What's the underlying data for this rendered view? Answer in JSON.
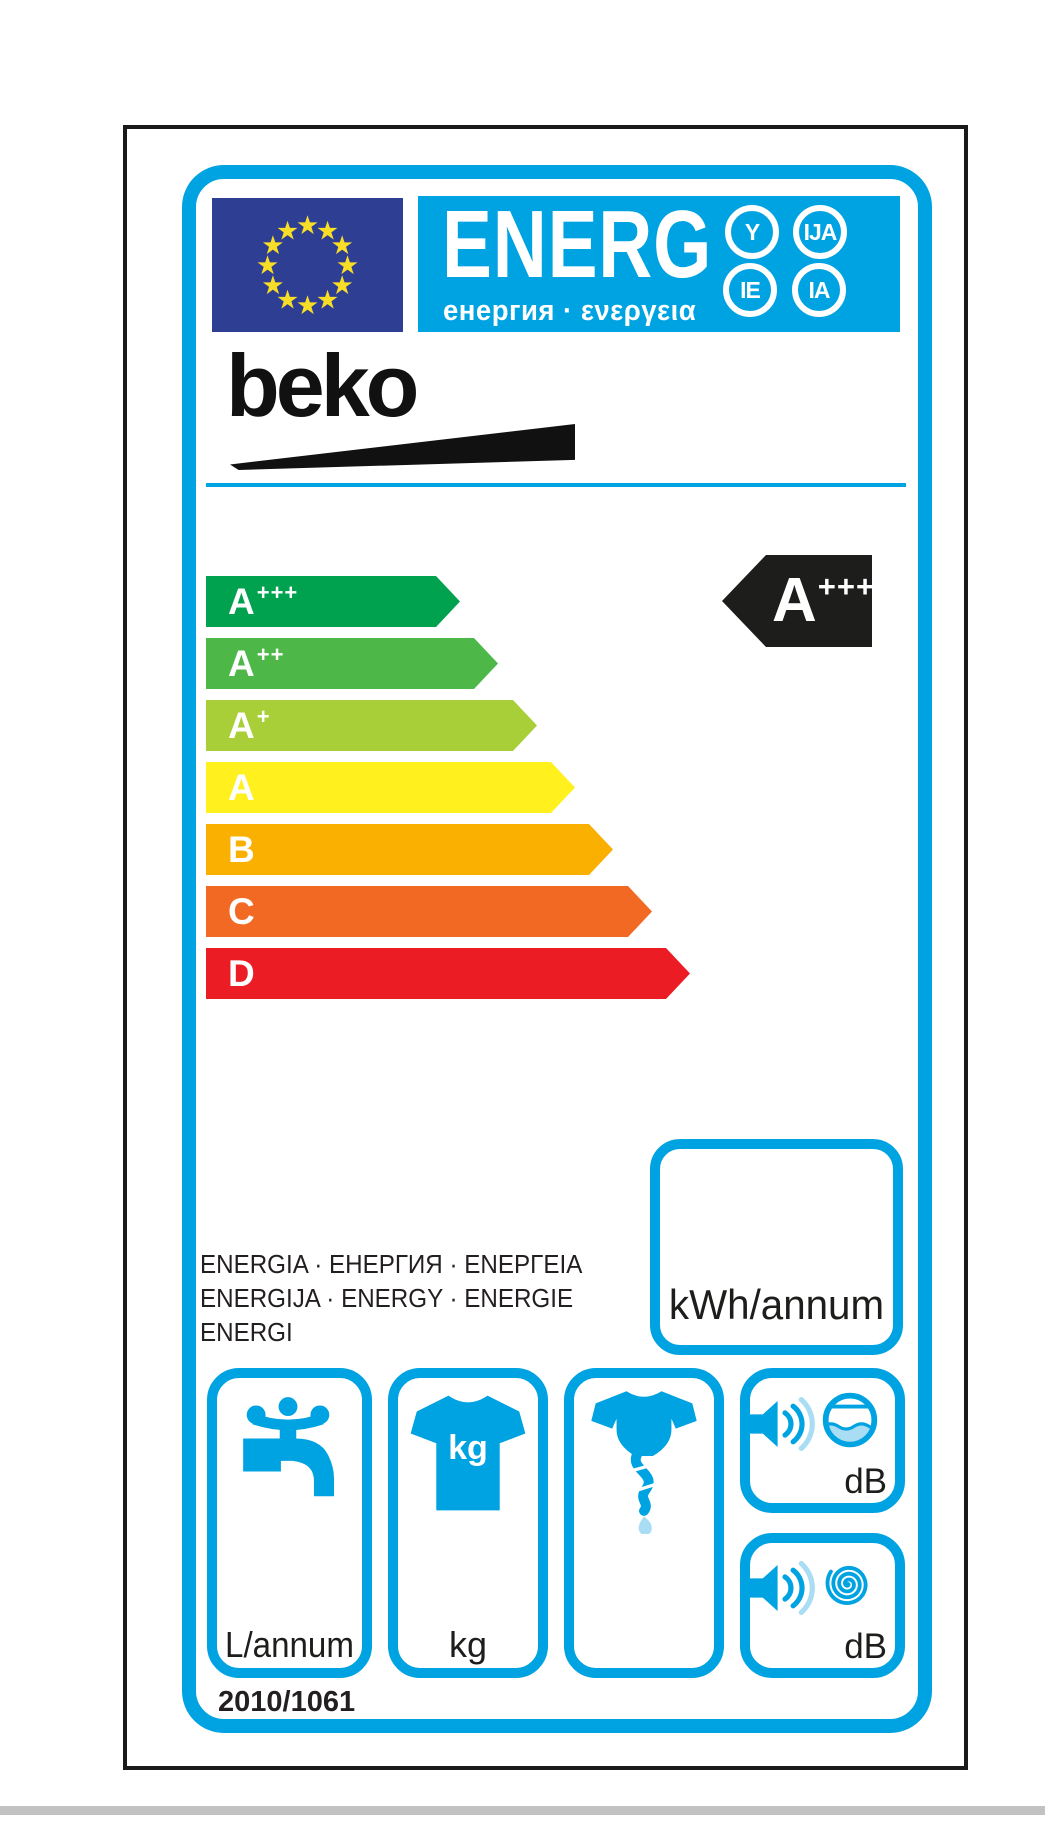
{
  "label": {
    "header": {
      "word": "ENERG",
      "subtitle": "енергия · ενεργεια",
      "badges": [
        "Y",
        "IJA",
        "IE",
        "IA"
      ]
    },
    "brand": "beko",
    "rating": {
      "selected": {
        "letter": "A",
        "sup": "+++"
      },
      "classes": [
        {
          "letter": "A",
          "sup": "+++",
          "color": "#00a24f"
        },
        {
          "letter": "A",
          "sup": "++",
          "color": "#4db848"
        },
        {
          "letter": "A",
          "sup": "+",
          "color": "#a8ce38"
        },
        {
          "letter": "A",
          "sup": "",
          "color": "#fff01e"
        },
        {
          "letter": "B",
          "sup": "",
          "color": "#f9b000"
        },
        {
          "letter": "C",
          "sup": "",
          "color": "#f26924"
        },
        {
          "letter": "D",
          "sup": "",
          "color": "#ec1c24"
        }
      ]
    },
    "energy_box": {
      "unit": "kWh/annum",
      "value": ""
    },
    "energia_lines": [
      "ENERGIA · ЕНЕРГИЯ · ENEPΓEIA",
      "ENERGIJA · ENERGY · ENERGIE",
      "ENERGI"
    ],
    "consumption_boxes": {
      "water": {
        "unit": "L/annum",
        "value": "",
        "icon": "tap-icon"
      },
      "capacity": {
        "unit": "kg",
        "icon_label": "kg",
        "value": "",
        "icon": "tshirt-icon"
      },
      "spin": {
        "value": "",
        "icon": "spin-dry-icon"
      },
      "noise_washing": {
        "unit": "dB",
        "value": "",
        "icon": "speaker-drum-icon"
      },
      "noise_spinning": {
        "unit": "dB",
        "value": "",
        "icon": "speaker-spiral-icon"
      }
    },
    "regulation": "2010/1061",
    "colors": {
      "accent_cyan": "#00a3e2",
      "light_cyan": "#a9ddf3",
      "flag_blue": "#2e3e92",
      "star_yellow": "#f8de26",
      "ink_black": "#1d1d1b",
      "shadow_gray": "#b5b5b5"
    }
  }
}
